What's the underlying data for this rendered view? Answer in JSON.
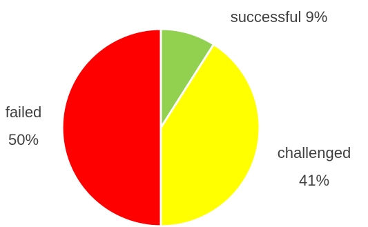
{
  "chart_data": {
    "type": "pie",
    "title": "",
    "slices": [
      {
        "label": "successful",
        "value": 9,
        "percent_label": "9%",
        "color": "#92D050"
      },
      {
        "label": "challenged",
        "value": 41,
        "percent_label": "41%",
        "color": "#FFFF00"
      },
      {
        "label": "failed",
        "value": 50,
        "percent_label": "50%",
        "color": "#FF0000"
      }
    ],
    "start_angle": "12 o'clock",
    "direction": "clockwise",
    "legend": "none"
  }
}
